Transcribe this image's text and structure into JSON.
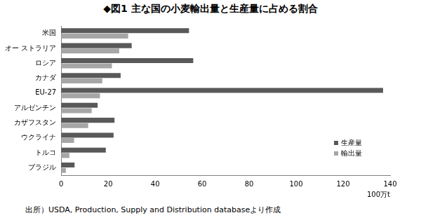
{
  "chart_data": {
    "type": "bar",
    "orientation": "horizontal",
    "title": "◆図1 主な国の小麦輸出量と生産量に占める割合",
    "x_label": "100万t",
    "source": "出所）USDA, Production, Supply and Distribution databaseより作成",
    "categories": [
      "米国",
      "オー ストラリア",
      "ロシア",
      "カナダ",
      "EU-27",
      "アルゼンチン",
      "カザフスタン",
      "ウクライナ",
      "トルコ",
      "ブラジル"
    ],
    "series": [
      {
        "name": "生産量",
        "color": "#595959",
        "values": [
          54.4,
          30,
          56.2,
          25.3,
          137,
          15.5,
          22.7,
          22.3,
          19,
          5.7
        ]
      },
      {
        "name": "輸出量",
        "color": "#a6a6a6",
        "values": [
          28.5,
          24.7,
          21.6,
          17.5,
          16.5,
          13,
          11.5,
          5.5,
          3.5,
          2
        ]
      }
    ],
    "xlim": [
      0,
      140
    ],
    "xticks": [
      0,
      20,
      40,
      60,
      80,
      100,
      120,
      140
    ],
    "grid": false,
    "legend": "bottom-right"
  }
}
